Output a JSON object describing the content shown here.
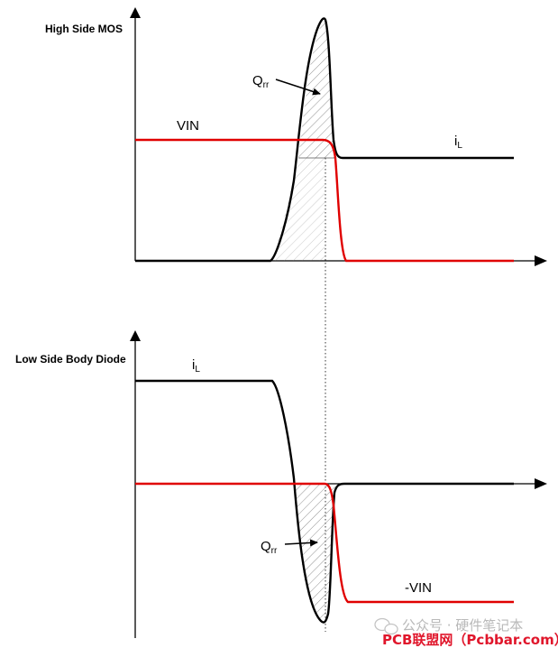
{
  "high_side": {
    "title": "High Side MOS",
    "vin_label": "VIN",
    "il_main": "i",
    "il_sub": "L",
    "qrr_main": "Q",
    "qrr_sub": "rr"
  },
  "low_side": {
    "title": "Low Side Body Diode",
    "il_main": "i",
    "il_sub": "L",
    "qrr_main": "Q",
    "qrr_sub": "rr",
    "neg_vin_label": "-VIN"
  },
  "colors": {
    "voltage": "#e00000",
    "current": "#000000",
    "hatch": "#777777"
  },
  "watermark": {
    "line1": "公众号 · 硬件笔记本",
    "line2": "PCB联盟网（Pcbbar.com）"
  }
}
